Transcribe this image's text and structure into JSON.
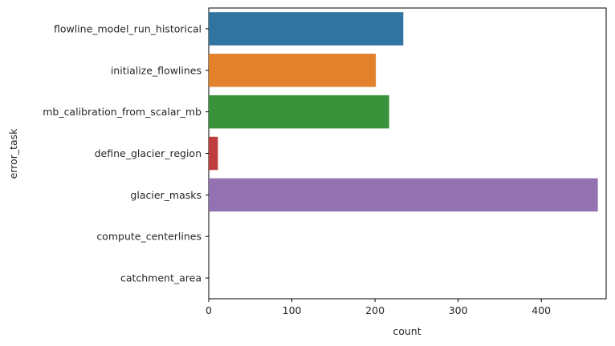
{
  "chart_data": {
    "type": "bar",
    "orientation": "horizontal",
    "categories": [
      "flowline_model_run_historical",
      "initialize_flowlines",
      "mb_calibration_from_scalar_mb",
      "define_glacier_region",
      "glacier_masks",
      "compute_centerlines",
      "catchment_area"
    ],
    "values": [
      234,
      201,
      217,
      11,
      468,
      0,
      0
    ],
    "colors": [
      "#3274a1",
      "#e1812c",
      "#3a923a",
      "#c03d3e",
      "#9372b2",
      "#845b53",
      "#d684bd"
    ],
    "xlabel": "count",
    "ylabel": "error_task",
    "xlim": [
      0,
      478
    ],
    "xticks": [
      0,
      100,
      200,
      300,
      400
    ],
    "grid": false
  }
}
